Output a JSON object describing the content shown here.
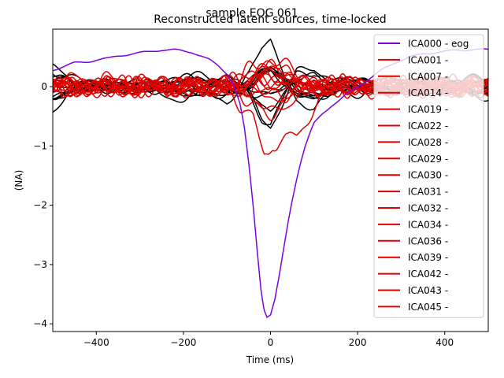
{
  "chart_data": {
    "type": "line",
    "title": "sample EOG 061",
    "subtitle": "Reconstructed latent sources, time-locked",
    "xlabel": "Time (ms)",
    "ylabel": "(NA)",
    "xlim": [
      -500,
      500
    ],
    "ylim": [
      -4.13,
      0.97
    ],
    "xticks": [
      -400,
      -200,
      0,
      200,
      400
    ],
    "yticks": [
      -4,
      -3,
      -2,
      -1,
      0
    ],
    "grid": false,
    "legend_position": "top-right",
    "colors": {
      "eog": "#7b00e0",
      "excluded": "#e00000",
      "other": "#000000"
    },
    "eog_component": {
      "name": "ICA000 - eog",
      "color": "#7b00e0",
      "points": [
        [
          -500,
          0.28
        ],
        [
          -480,
          0.33
        ],
        [
          -450,
          0.4
        ],
        [
          -420,
          0.42
        ],
        [
          -400,
          0.45
        ],
        [
          -370,
          0.48
        ],
        [
          -350,
          0.52
        ],
        [
          -320,
          0.55
        ],
        [
          -300,
          0.57
        ],
        [
          -270,
          0.6
        ],
        [
          -250,
          0.62
        ],
        [
          -220,
          0.62
        ],
        [
          -200,
          0.6
        ],
        [
          -180,
          0.58
        ],
        [
          -160,
          0.52
        ],
        [
          -140,
          0.45
        ],
        [
          -120,
          0.35
        ],
        [
          -100,
          0.22
        ],
        [
          -85,
          0.05
        ],
        [
          -70,
          -0.3
        ],
        [
          -60,
          -0.7
        ],
        [
          -50,
          -1.3
        ],
        [
          -40,
          -2.0
        ],
        [
          -30,
          -2.8
        ],
        [
          -22,
          -3.4
        ],
        [
          -15,
          -3.75
        ],
        [
          -8,
          -3.88
        ],
        [
          0,
          -3.85
        ],
        [
          10,
          -3.6
        ],
        [
          20,
          -3.2
        ],
        [
          30,
          -2.75
        ],
        [
          40,
          -2.3
        ],
        [
          50,
          -1.9
        ],
        [
          60,
          -1.55
        ],
        [
          70,
          -1.25
        ],
        [
          80,
          -1.0
        ],
        [
          90,
          -0.8
        ],
        [
          100,
          -0.62
        ],
        [
          120,
          -0.45
        ],
        [
          140,
          -0.32
        ],
        [
          160,
          -0.22
        ],
        [
          180,
          -0.1
        ],
        [
          200,
          0.0
        ],
        [
          230,
          0.15
        ],
        [
          260,
          0.3
        ],
        [
          290,
          0.42
        ],
        [
          320,
          0.5
        ],
        [
          350,
          0.55
        ],
        [
          380,
          0.58
        ],
        [
          410,
          0.6
        ],
        [
          440,
          0.62
        ],
        [
          470,
          0.63
        ],
        [
          500,
          0.62
        ]
      ]
    },
    "excluded_components": {
      "names": [
        "ICA001 -",
        "ICA007 -",
        "ICA014 -",
        "ICA019 -",
        "ICA022 -",
        "ICA028 -",
        "ICA029 -",
        "ICA030 -",
        "ICA031 -",
        "ICA032 -",
        "ICA034 -",
        "ICA036 -",
        "ICA039 -",
        "ICA042 -",
        "ICA043 -",
        "ICA045 -"
      ],
      "color": "#e00000",
      "peak_component": {
        "points": [
          [
            -500,
            0.1
          ],
          [
            -300,
            0.05
          ],
          [
            -150,
            0.0
          ],
          [
            -100,
            -0.05
          ],
          [
            -60,
            -0.3
          ],
          [
            -40,
            -0.6
          ],
          [
            -25,
            -1.0
          ],
          [
            -15,
            -1.2
          ],
          [
            -5,
            -1.1
          ],
          [
            5,
            -0.9
          ],
          [
            20,
            -0.85
          ],
          [
            40,
            -0.95
          ],
          [
            60,
            -0.88
          ],
          [
            80,
            -0.6
          ],
          [
            100,
            -0.3
          ],
          [
            130,
            -0.1
          ],
          [
            200,
            0.05
          ],
          [
            300,
            0.0
          ],
          [
            500,
            0.05
          ]
        ]
      }
    },
    "other_components": {
      "color": "#000000",
      "count": 12,
      "peak_points": [
        [
          -500,
          -0.35
        ],
        [
          -450,
          -0.1
        ],
        [
          -400,
          0.0
        ],
        [
          -300,
          -0.05
        ],
        [
          -200,
          -0.15
        ],
        [
          -100,
          -0.2
        ],
        [
          -50,
          0.2
        ],
        [
          -20,
          0.6
        ],
        [
          0,
          0.72
        ],
        [
          20,
          0.4
        ],
        [
          60,
          -0.2
        ],
        [
          100,
          -0.35
        ],
        [
          160,
          -0.1
        ],
        [
          260,
          0.05
        ],
        [
          380,
          0.0
        ],
        [
          500,
          -0.15
        ]
      ]
    }
  }
}
